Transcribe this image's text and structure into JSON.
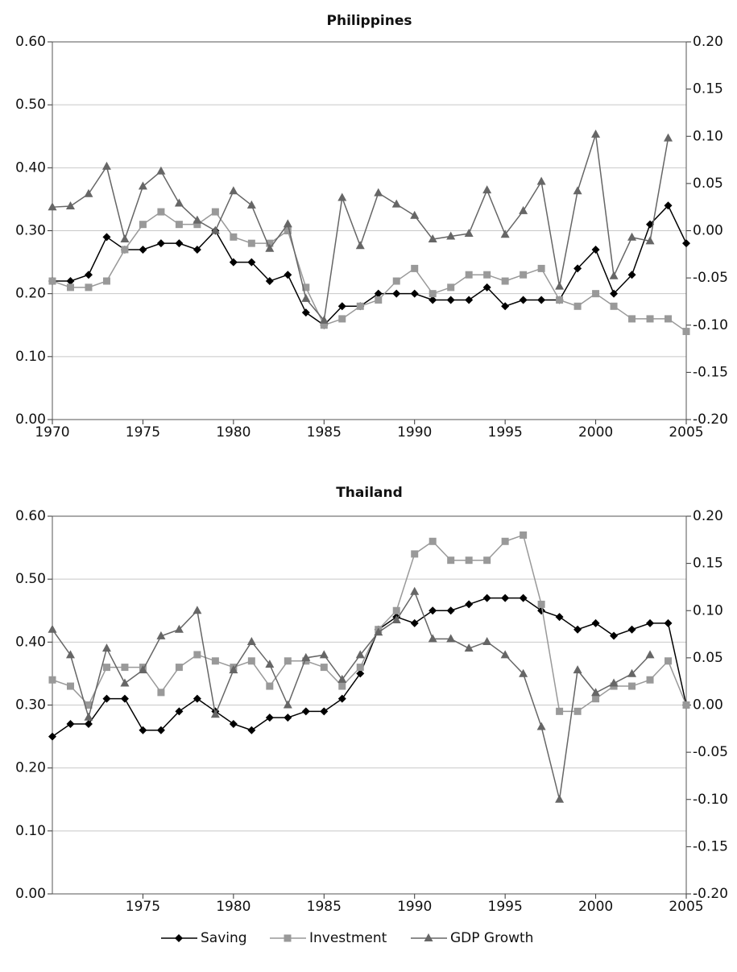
{
  "chart_data": [
    {
      "type": "line",
      "title": "Philippines",
      "legend": "bottom",
      "grid": true,
      "x": [
        1970,
        1971,
        1972,
        1973,
        1974,
        1975,
        1976,
        1977,
        1978,
        1979,
        1980,
        1981,
        1982,
        1983,
        1984,
        1985,
        1986,
        1987,
        1988,
        1989,
        1990,
        1991,
        1992,
        1993,
        1994,
        1995,
        1996,
        1997,
        1998,
        1999,
        2000,
        2001,
        2002,
        2003,
        2004,
        2005
      ],
      "xlim": [
        1970,
        2005
      ],
      "xticks": [
        1970,
        1975,
        1980,
        1985,
        1990,
        1995,
        2000,
        2005
      ],
      "ylim": [
        0,
        0.6
      ],
      "yticks": [
        {
          "value": 0,
          "label": "0.00"
        },
        {
          "value": 0.1,
          "label": "0.10"
        },
        {
          "value": 0.2,
          "label": "0.20"
        },
        {
          "value": 0.3,
          "label": "0.30"
        },
        {
          "value": 0.4,
          "label": "0.40"
        },
        {
          "value": 0.5,
          "label": "0.50"
        },
        {
          "value": 0.6,
          "label": "0.60"
        }
      ],
      "y2lim": [
        -0.2,
        0.2
      ],
      "y2ticks": [
        {
          "value": -0.2,
          "label": "-0.20"
        },
        {
          "value": -0.15,
          "label": "-0.15"
        },
        {
          "value": -0.1,
          "label": "-0.10"
        },
        {
          "value": -0.05,
          "label": "-0.05"
        },
        {
          "value": 0,
          "label": "0.00"
        },
        {
          "value": 0.05,
          "label": "0.05"
        },
        {
          "value": 0.1,
          "label": "0.10"
        },
        {
          "value": 0.15,
          "label": "0.15"
        },
        {
          "value": 0.2,
          "label": "0.20"
        }
      ],
      "series": [
        {
          "name": "Saving",
          "color": "#000000",
          "marker": "diamond",
          "values": [
            0.22,
            0.22,
            0.23,
            0.29,
            0.27,
            0.27,
            0.28,
            0.28,
            0.27,
            0.3,
            0.25,
            0.25,
            0.22,
            0.23,
            0.17,
            0.15,
            0.18,
            0.18,
            0.2,
            0.2,
            0.2,
            0.19,
            0.19,
            0.19,
            0.21,
            0.18,
            0.19,
            0.19,
            0.19,
            0.24,
            0.27,
            0.2,
            0.23,
            0.31,
            0.34,
            0.28
          ]
        },
        {
          "name": "Investment",
          "color": "#999999",
          "marker": "square",
          "values": [
            0.22,
            0.21,
            0.21,
            0.22,
            0.27,
            0.31,
            0.33,
            0.31,
            0.31,
            0.33,
            0.29,
            0.28,
            0.28,
            0.3,
            0.21,
            0.15,
            0.16,
            0.18,
            0.19,
            0.22,
            0.24,
            0.2,
            0.21,
            0.23,
            0.23,
            0.22,
            0.23,
            0.24,
            0.19,
            0.18,
            0.2,
            0.18,
            0.16,
            0.16,
            0.16,
            0.14
          ]
        },
        {
          "name": "GDP Growth",
          "color": "#666666",
          "marker": "triangle",
          "axis": "y2",
          "values": [
            0.025,
            0.026,
            0.039,
            0.068,
            -0.009,
            0.047,
            0.063,
            0.029,
            0.011,
            0.0,
            0.042,
            0.027,
            -0.019,
            0.007,
            -0.072,
            -0.095,
            0.035,
            -0.016,
            0.04,
            0.028,
            0.016,
            -0.009,
            -0.006,
            -0.003,
            0.043,
            -0.004,
            0.021,
            0.052,
            -0.059,
            0.042,
            0.102,
            -0.048,
            -0.007,
            -0.011,
            0.098,
            null
          ]
        }
      ]
    },
    {
      "type": "line",
      "title": "Thailand",
      "grid": true,
      "x": [
        1970,
        1971,
        1972,
        1973,
        1974,
        1975,
        1976,
        1977,
        1978,
        1979,
        1980,
        1981,
        1982,
        1983,
        1984,
        1985,
        1986,
        1987,
        1988,
        1989,
        1990,
        1991,
        1992,
        1993,
        1994,
        1995,
        1996,
        1997,
        1998,
        1999,
        2000,
        2001,
        2002,
        2003,
        2004,
        2005
      ],
      "xlim": [
        1970,
        2005
      ],
      "xticks": [
        1975,
        1980,
        1985,
        1990,
        1995,
        2000,
        2005
      ],
      "ylim": [
        0,
        0.6
      ],
      "yticks": [
        {
          "value": 0,
          "label": "0.00"
        },
        {
          "value": 0.1,
          "label": "0.10"
        },
        {
          "value": 0.2,
          "label": "0.20"
        },
        {
          "value": 0.3,
          "label": "0.30"
        },
        {
          "value": 0.4,
          "label": "0.40"
        },
        {
          "value": 0.5,
          "label": "0.50"
        },
        {
          "value": 0.6,
          "label": "0.60"
        }
      ],
      "y2lim": [
        -0.2,
        0.2
      ],
      "y2ticks": [
        {
          "value": -0.2,
          "label": "-0.20"
        },
        {
          "value": -0.15,
          "label": "-0.15"
        },
        {
          "value": -0.1,
          "label": "-0.10"
        },
        {
          "value": -0.05,
          "label": "-0.05"
        },
        {
          "value": 0,
          "label": "0.00"
        },
        {
          "value": 0.05,
          "label": "0.05"
        },
        {
          "value": 0.1,
          "label": "0.10"
        },
        {
          "value": 0.15,
          "label": "0.15"
        },
        {
          "value": 0.2,
          "label": "0.20"
        }
      ],
      "series": [
        {
          "name": "Saving",
          "color": "#000000",
          "marker": "diamond",
          "values": [
            0.25,
            0.27,
            0.27,
            0.31,
            0.31,
            0.26,
            0.26,
            0.29,
            0.31,
            0.29,
            0.27,
            0.26,
            0.28,
            0.28,
            0.29,
            0.29,
            0.31,
            0.35,
            0.42,
            0.44,
            0.43,
            0.45,
            0.45,
            0.46,
            0.47,
            0.47,
            0.47,
            0.45,
            0.44,
            0.42,
            0.43,
            0.41,
            0.42,
            0.43,
            0.43,
            0.3
          ]
        },
        {
          "name": "Investment",
          "color": "#999999",
          "marker": "square",
          "values": [
            0.34,
            0.33,
            0.3,
            0.36,
            0.36,
            0.36,
            0.32,
            0.36,
            0.38,
            0.37,
            0.36,
            0.37,
            0.33,
            0.37,
            0.37,
            0.36,
            0.33,
            0.36,
            0.42,
            0.45,
            0.54,
            0.56,
            0.53,
            0.53,
            0.53,
            0.56,
            0.57,
            0.46,
            0.29,
            0.29,
            0.31,
            0.33,
            0.33,
            0.34,
            0.37,
            0.3
          ]
        },
        {
          "name": "GDP Growth",
          "color": "#666666",
          "marker": "triangle",
          "axis": "y2",
          "values": [
            0.08,
            0.053,
            -0.013,
            0.06,
            0.023,
            0.037,
            0.073,
            0.08,
            0.1,
            -0.01,
            0.037,
            0.067,
            0.043,
            0.0,
            0.05,
            0.053,
            0.027,
            0.053,
            0.077,
            0.09,
            0.12,
            0.07,
            0.07,
            0.06,
            0.067,
            0.053,
            0.033,
            -0.023,
            -0.1,
            0.037,
            0.013,
            0.023,
            0.033,
            0.053,
            null,
            null
          ]
        }
      ]
    }
  ]
}
